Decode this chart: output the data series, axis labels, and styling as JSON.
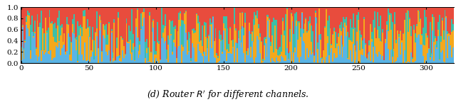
{
  "n_channels": 321,
  "colors": [
    "#5ab4e5",
    "#f5a81c",
    "#3dbfa8",
    "#e84c3d"
  ],
  "ylim": [
    0.0,
    1.0
  ],
  "yticks": [
    0.0,
    0.2,
    0.4,
    0.6,
    0.8,
    1.0
  ],
  "xticks": [
    0,
    50,
    100,
    150,
    200,
    250,
    300
  ],
  "xlabel": "",
  "title": "(d) Router $R'$ for different channels.",
  "title_fontsize": 9,
  "tick_fontsize": 7.5,
  "bar_width": 1.0,
  "seed": 42,
  "alpha_blue": 0.7,
  "alpha_orange": 0.8,
  "alpha_teal": 0.5,
  "alpha_red": 1.2
}
